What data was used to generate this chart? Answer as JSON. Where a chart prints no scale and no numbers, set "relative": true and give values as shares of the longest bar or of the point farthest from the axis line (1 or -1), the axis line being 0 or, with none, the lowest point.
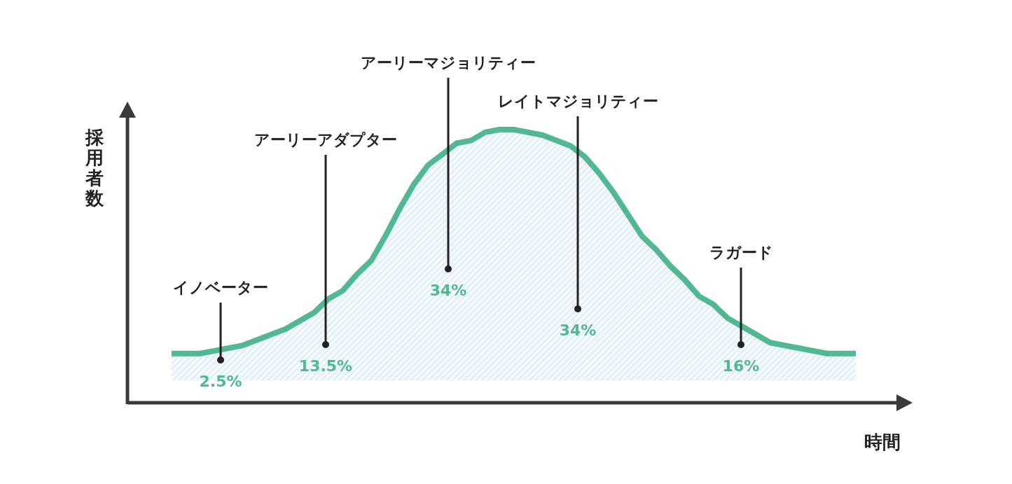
{
  "chart_data": {
    "type": "area",
    "relative": true,
    "xlabel": "時間",
    "ylabel": "採用者数",
    "categories": [
      null,
      null,
      null,
      null,
      null,
      null,
      null,
      null,
      null,
      null,
      null,
      null,
      null,
      null,
      null,
      null,
      null,
      null,
      null,
      null,
      null,
      null,
      null,
      null,
      null,
      null,
      null,
      null,
      null,
      null,
      null,
      null,
      null,
      null,
      null,
      null,
      null,
      null,
      null,
      null,
      null,
      null,
      null,
      null,
      null,
      null,
      null,
      null,
      null
    ],
    "series": [
      {
        "color": "#52b893",
        "values": [
          0.18,
          0.18,
          0.18,
          0.19,
          0.2,
          0.21,
          0.23,
          0.25,
          0.27,
          0.3,
          0.33,
          0.38,
          0.41,
          0.47,
          0.52,
          0.61,
          0.71,
          0.8,
          0.87,
          0.91,
          0.95,
          0.96,
          0.99,
          1.0,
          1.0,
          0.99,
          0.98,
          0.96,
          0.94,
          0.9,
          0.84,
          0.77,
          0.69,
          0.61,
          0.56,
          0.5,
          0.45,
          0.39,
          0.36,
          0.31,
          0.28,
          0.25,
          0.22,
          0.21,
          0.2,
          0.19,
          0.18,
          0.18,
          0.18
        ]
      }
    ],
    "annotations": [
      "イノベーター",
      "2.5%",
      "アーリーアダプター",
      "13.5%",
      "アーリーマジョリティー",
      "34%",
      "レイトマジョリティー",
      "34%",
      "ラガード",
      "16%"
    ]
  }
}
